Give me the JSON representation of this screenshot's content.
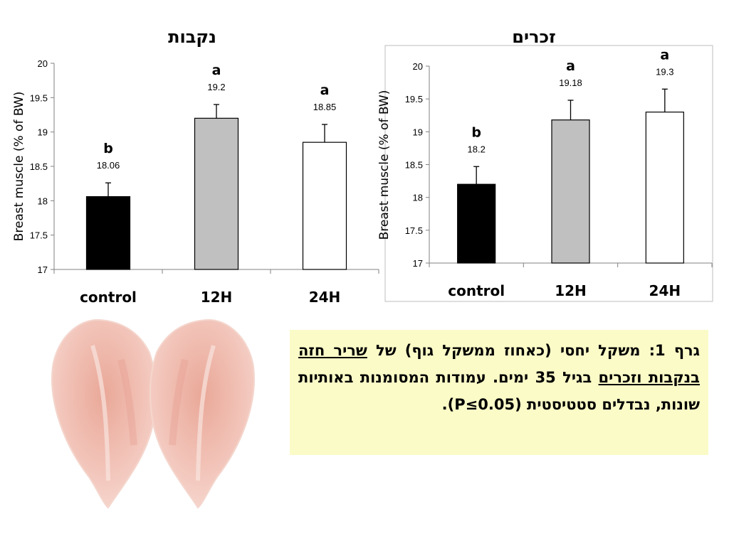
{
  "chart_data": [
    {
      "type": "bar",
      "title": "נקבות",
      "ylabel": "Breast muscle (% of BW)",
      "categories": [
        "control",
        "12H",
        "24H"
      ],
      "values": [
        18.06,
        19.2,
        18.85
      ],
      "errors": [
        0.2,
        0.2,
        0.26
      ],
      "value_labels": [
        "18.06",
        "19.2",
        "18.85"
      ],
      "significance": [
        "b",
        "a",
        "a"
      ],
      "colors": [
        "#000000",
        "#c0c0c0",
        "#ffffff"
      ],
      "ylim": [
        17,
        20
      ],
      "yticks": [
        "17",
        "17.5",
        "18",
        "18.5",
        "19",
        "19.5",
        "20"
      ]
    },
    {
      "type": "bar",
      "title": "זכרים",
      "ylabel": "Breast muscle (% of BW)",
      "categories": [
        "control",
        "12H",
        "24H"
      ],
      "values": [
        18.2,
        19.18,
        19.3
      ],
      "errors": [
        0.27,
        0.3,
        0.35
      ],
      "value_labels": [
        "18.2",
        "19.18",
        "19.3"
      ],
      "significance": [
        "b",
        "a",
        "a"
      ],
      "colors": [
        "#000000",
        "#c0c0c0",
        "#ffffff"
      ],
      "ylim": [
        17,
        20
      ],
      "yticks": [
        "17",
        "17.5",
        "18",
        "18.5",
        "19",
        "19.5",
        "20"
      ]
    }
  ],
  "caption": {
    "part1": "גרף 1: משקל יחסי (כאחוז ממשקל גוף) של",
    "underlined": "שריר חזה בנקבות וזכרים",
    "part2": " בגיל 35 ימים. עמודות המסומנות באותיות שונות, נבדלים סטטיסטית (P≤0.05).",
    "background": "#fbfbc8"
  },
  "photo": {
    "icon": "chicken-breast-fillets"
  }
}
